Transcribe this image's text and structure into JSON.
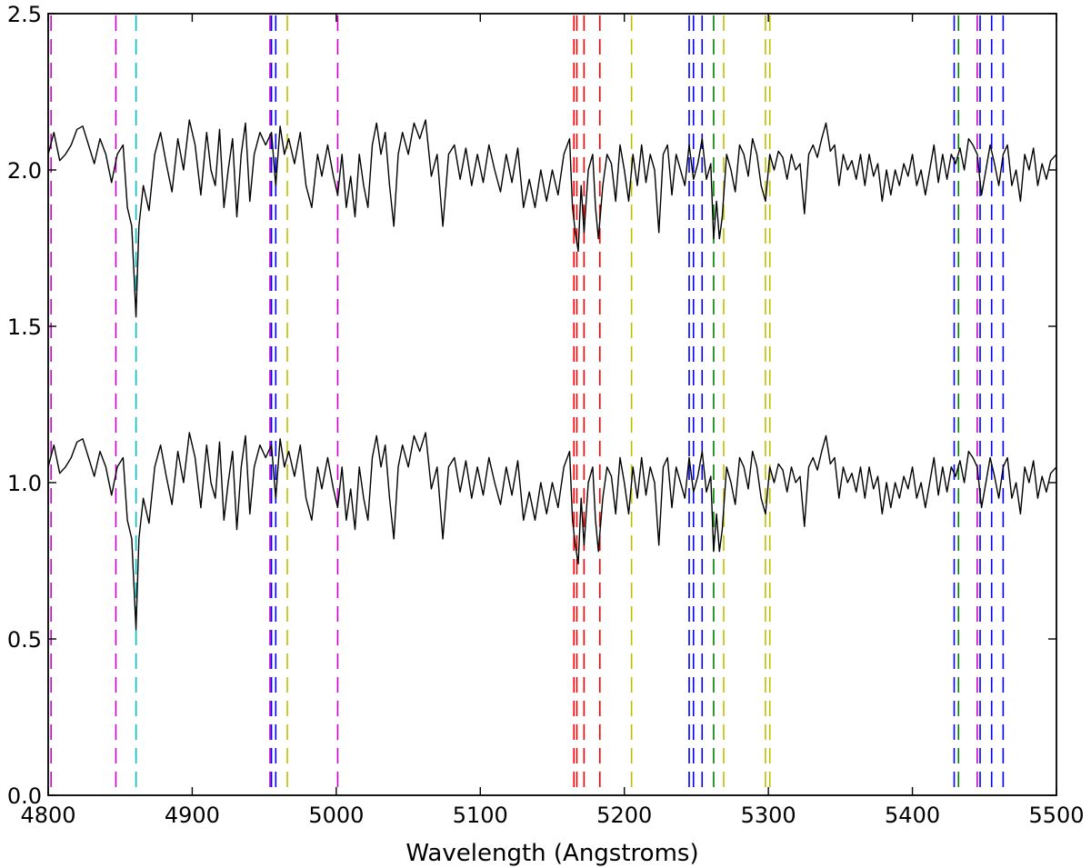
{
  "chart_data": {
    "type": "line",
    "title": "",
    "xlabel": "Wavelength (Angstroms)",
    "ylabel": "",
    "xlim": [
      4800,
      5500
    ],
    "ylim": [
      0.0,
      2.5
    ],
    "grid": false,
    "legend": "none",
    "x_ticks": [
      4800,
      4900,
      5000,
      5100,
      5200,
      5300,
      5400,
      5500
    ],
    "x_tick_labels": [
      "4800",
      "4900",
      "5000",
      "5100",
      "5200",
      "5300",
      "5400",
      "5500"
    ],
    "y_ticks": [
      0.0,
      0.5,
      1.0,
      1.5,
      2.0,
      2.5
    ],
    "y_tick_labels": [
      "0.0",
      "0.5",
      "1.0",
      "1.5",
      "2.0",
      "2.5"
    ],
    "series": [
      {
        "offset": 1.0,
        "color": "#000000",
        "start": 1.05
      },
      {
        "offset": 0.0,
        "color": "#000000",
        "start": 1.05
      }
    ],
    "spectrum_base": [
      [
        4800,
        1.05
      ],
      [
        4804,
        1.12
      ],
      [
        4808,
        1.03
      ],
      [
        4812,
        1.05
      ],
      [
        4816,
        1.08
      ],
      [
        4820,
        1.13
      ],
      [
        4824,
        1.14
      ],
      [
        4828,
        1.08
      ],
      [
        4832,
        1.02
      ],
      [
        4836,
        1.1
      ],
      [
        4840,
        1.05
      ],
      [
        4844,
        0.96
      ],
      [
        4848,
        1.05
      ],
      [
        4852,
        1.08
      ],
      [
        4855,
        0.88
      ],
      [
        4858,
        0.82
      ],
      [
        4861,
        0.53
      ],
      [
        4863,
        0.82
      ],
      [
        4866,
        0.95
      ],
      [
        4870,
        0.87
      ],
      [
        4874,
        1.05
      ],
      [
        4878,
        1.12
      ],
      [
        4882,
        1.02
      ],
      [
        4886,
        0.93
      ],
      [
        4890,
        1.1
      ],
      [
        4894,
        1.0
      ],
      [
        4898,
        1.16
      ],
      [
        4902,
        1.08
      ],
      [
        4906,
        0.92
      ],
      [
        4910,
        1.12
      ],
      [
        4913,
        1.0
      ],
      [
        4916,
        0.95
      ],
      [
        4919,
        1.13
      ],
      [
        4922,
        0.88
      ],
      [
        4925,
        1.0
      ],
      [
        4928,
        1.1
      ],
      [
        4931,
        0.85
      ],
      [
        4934,
        1.05
      ],
      [
        4937,
        1.15
      ],
      [
        4940,
        0.9
      ],
      [
        4943,
        1.05
      ],
      [
        4947,
        1.12
      ],
      [
        4951,
        1.08
      ],
      [
        4955,
        1.12
      ],
      [
        4958,
        0.95
      ],
      [
        4961,
        1.14
      ],
      [
        4964,
        1.05
      ],
      [
        4967,
        1.1
      ],
      [
        4971,
        1.02
      ],
      [
        4975,
        1.12
      ],
      [
        4979,
        0.95
      ],
      [
        4983,
        0.88
      ],
      [
        4987,
        1.05
      ],
      [
        4990,
        0.98
      ],
      [
        4994,
        1.08
      ],
      [
        4998,
        0.98
      ],
      [
        5001,
        0.92
      ],
      [
        5004,
        1.05
      ],
      [
        5007,
        0.88
      ],
      [
        5010,
        0.98
      ],
      [
        5013,
        0.85
      ],
      [
        5016,
        1.05
      ],
      [
        5019,
        0.95
      ],
      [
        5022,
        0.88
      ],
      [
        5025,
        1.08
      ],
      [
        5028,
        1.15
      ],
      [
        5031,
        1.05
      ],
      [
        5034,
        1.12
      ],
      [
        5037,
        0.95
      ],
      [
        5040,
        0.82
      ],
      [
        5043,
        1.05
      ],
      [
        5046,
        1.12
      ],
      [
        5050,
        1.05
      ],
      [
        5054,
        1.15
      ],
      [
        5058,
        1.1
      ],
      [
        5062,
        1.16
      ],
      [
        5066,
        0.98
      ],
      [
        5070,
        1.05
      ],
      [
        5074,
        0.82
      ],
      [
        5078,
        1.05
      ],
      [
        5082,
        1.08
      ],
      [
        5086,
        0.97
      ],
      [
        5090,
        1.07
      ],
      [
        5094,
        0.95
      ],
      [
        5098,
        1.05
      ],
      [
        5102,
        0.96
      ],
      [
        5106,
        1.08
      ],
      [
        5110,
        1.0
      ],
      [
        5114,
        0.93
      ],
      [
        5118,
        1.05
      ],
      [
        5122,
        0.96
      ],
      [
        5126,
        1.07
      ],
      [
        5130,
        0.88
      ],
      [
        5134,
        0.97
      ],
      [
        5138,
        0.88
      ],
      [
        5142,
        1.0
      ],
      [
        5146,
        0.9
      ],
      [
        5150,
        1.0
      ],
      [
        5154,
        0.92
      ],
      [
        5158,
        1.05
      ],
      [
        5162,
        1.1
      ],
      [
        5164,
        0.88
      ],
      [
        5166,
        0.8
      ],
      [
        5168,
        0.74
      ],
      [
        5170,
        0.95
      ],
      [
        5172,
        0.8
      ],
      [
        5175,
        1.0
      ],
      [
        5178,
        1.05
      ],
      [
        5180,
        0.88
      ],
      [
        5182,
        0.78
      ],
      [
        5185,
        0.95
      ],
      [
        5188,
        1.05
      ],
      [
        5191,
        1.02
      ],
      [
        5194,
        0.9
      ],
      [
        5197,
        1.08
      ],
      [
        5200,
        1.0
      ],
      [
        5203,
        0.9
      ],
      [
        5206,
        1.05
      ],
      [
        5209,
        0.95
      ],
      [
        5212,
        1.08
      ],
      [
        5215,
        0.96
      ],
      [
        5218,
        1.05
      ],
      [
        5221,
        1.0
      ],
      [
        5224,
        0.8
      ],
      [
        5227,
        1.05
      ],
      [
        5230,
        1.08
      ],
      [
        5233,
        0.92
      ],
      [
        5236,
        1.05
      ],
      [
        5239,
        1.0
      ],
      [
        5242,
        0.95
      ],
      [
        5245,
        1.08
      ],
      [
        5248,
        0.97
      ],
      [
        5251,
        1.02
      ],
      [
        5254,
        1.1
      ],
      [
        5257,
        0.97
      ],
      [
        5260,
        1.02
      ],
      [
        5262,
        0.78
      ],
      [
        5264,
        0.9
      ],
      [
        5266,
        0.78
      ],
      [
        5268,
        0.85
      ],
      [
        5271,
        1.05
      ],
      [
        5274,
        1.0
      ],
      [
        5277,
        0.93
      ],
      [
        5280,
        1.08
      ],
      [
        5283,
        1.05
      ],
      [
        5286,
        0.98
      ],
      [
        5289,
        1.1
      ],
      [
        5292,
        1.05
      ],
      [
        5295,
        0.95
      ],
      [
        5298,
        0.9
      ],
      [
        5301,
        1.05
      ],
      [
        5304,
        1.0
      ],
      [
        5307,
        1.06
      ],
      [
        5310,
        1.04
      ],
      [
        5313,
        0.97
      ],
      [
        5316,
        1.05
      ],
      [
        5319,
        1.0
      ],
      [
        5322,
        1.02
      ],
      [
        5325,
        0.86
      ],
      [
        5328,
        1.05
      ],
      [
        5331,
        1.08
      ],
      [
        5334,
        1.04
      ],
      [
        5337,
        1.1
      ],
      [
        5340,
        1.15
      ],
      [
        5343,
        1.06
      ],
      [
        5346,
        1.08
      ],
      [
        5349,
        0.95
      ],
      [
        5352,
        1.05
      ],
      [
        5355,
        1.0
      ],
      [
        5358,
        1.03
      ],
      [
        5361,
        0.97
      ],
      [
        5364,
        1.05
      ],
      [
        5367,
        0.95
      ],
      [
        5370,
        1.05
      ],
      [
        5373,
        0.98
      ],
      [
        5376,
        1.02
      ],
      [
        5379,
        0.9
      ],
      [
        5382,
        1.0
      ],
      [
        5385,
        0.92
      ],
      [
        5388,
        1.0
      ],
      [
        5391,
        0.95
      ],
      [
        5394,
        1.02
      ],
      [
        5397,
        0.98
      ],
      [
        5400,
        1.05
      ],
      [
        5403,
        0.95
      ],
      [
        5406,
        1.0
      ],
      [
        5409,
        0.92
      ],
      [
        5412,
        1.0
      ],
      [
        5415,
        1.08
      ],
      [
        5418,
        0.96
      ],
      [
        5421,
        1.05
      ],
      [
        5424,
        0.97
      ],
      [
        5427,
        1.05
      ],
      [
        5430,
        1.02
      ],
      [
        5433,
        1.07
      ],
      [
        5436,
        1.0
      ],
      [
        5439,
        1.1
      ],
      [
        5442,
        1.08
      ],
      [
        5445,
        1.05
      ],
      [
        5448,
        0.92
      ],
      [
        5451,
        1.0
      ],
      [
        5454,
        1.08
      ],
      [
        5457,
        1.02
      ],
      [
        5460,
        0.95
      ],
      [
        5463,
        1.05
      ],
      [
        5466,
        1.08
      ],
      [
        5469,
        0.95
      ],
      [
        5472,
        1.0
      ],
      [
        5475,
        0.9
      ],
      [
        5478,
        1.05
      ],
      [
        5481,
        1.0
      ],
      [
        5484,
        1.07
      ],
      [
        5487,
        0.95
      ],
      [
        5490,
        1.02
      ],
      [
        5493,
        0.97
      ],
      [
        5496,
        1.03
      ],
      [
        5500,
        1.05
      ]
    ],
    "line_markers": [
      {
        "x": 4802,
        "color": "#cc00cc"
      },
      {
        "x": 4847,
        "color": "#cc00cc"
      },
      {
        "x": 4861,
        "color": "#00bfbf"
      },
      {
        "x": 4954,
        "color": "#cc00cc"
      },
      {
        "x": 4955,
        "color": "#0000ff"
      },
      {
        "x": 4958,
        "color": "#0000ff"
      },
      {
        "x": 4966,
        "color": "#bfbf00"
      },
      {
        "x": 5001,
        "color": "#cc00cc"
      },
      {
        "x": 5165,
        "color": "#ff0000"
      },
      {
        "x": 5167,
        "color": "#ff0000"
      },
      {
        "x": 5172,
        "color": "#ff0000"
      },
      {
        "x": 5183,
        "color": "#ff0000"
      },
      {
        "x": 5205,
        "color": "#bfbf00"
      },
      {
        "x": 5245,
        "color": "#0000ff"
      },
      {
        "x": 5248,
        "color": "#0000ff"
      },
      {
        "x": 5254,
        "color": "#0000ff"
      },
      {
        "x": 5262,
        "color": "#008000"
      },
      {
        "x": 5269,
        "color": "#bfbf00"
      },
      {
        "x": 5298,
        "color": "#bfbf00"
      },
      {
        "x": 5301,
        "color": "#bfbf00"
      },
      {
        "x": 5429,
        "color": "#0000ff"
      },
      {
        "x": 5432,
        "color": "#008000"
      },
      {
        "x": 5445,
        "color": "#cc00cc"
      },
      {
        "x": 5447,
        "color": "#0000ff"
      },
      {
        "x": 5455,
        "color": "#0000ff"
      },
      {
        "x": 5463,
        "color": "#0000ff"
      }
    ]
  }
}
